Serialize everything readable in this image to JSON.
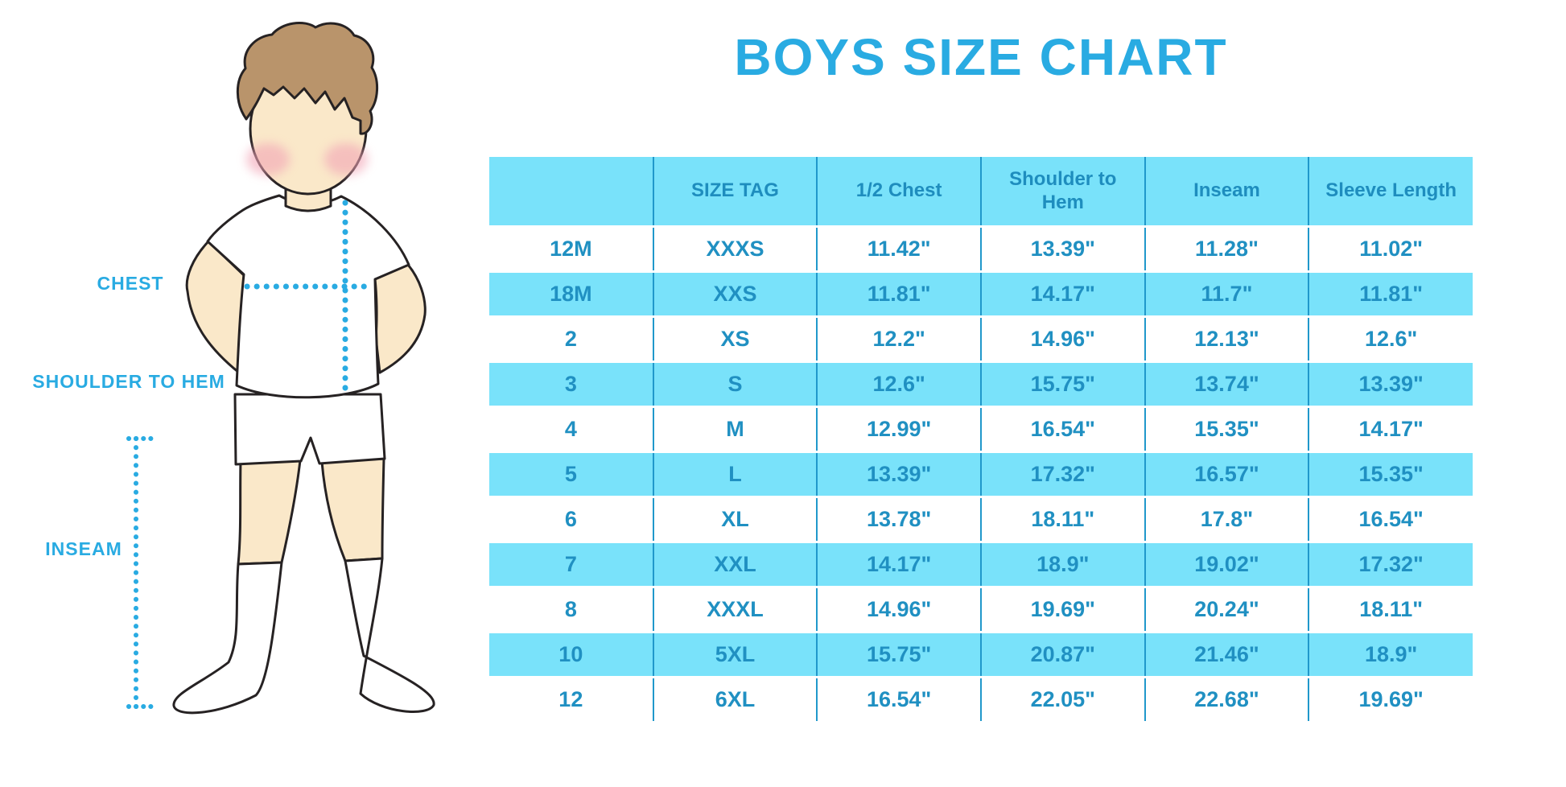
{
  "page": {
    "title": "BOYS SIZE CHART"
  },
  "figure": {
    "description": "cartoon boy in white tee, shorts and knee socks with dotted measurement guides",
    "labels": {
      "chest": "CHEST",
      "shoulder_to_hem": "SHOULDER TO HEM",
      "inseam": "INSEAM"
    }
  },
  "colors": {
    "accent_blue": "#29ABE2",
    "table_band_blue": "#79E2FA",
    "table_text_blue": "#2090C2",
    "grid_line_blue": "#2098CB",
    "skin": "#FAE8C9",
    "hair": "#B9946B",
    "blush": "#F2A4B6",
    "outline": "#262223"
  },
  "chart_data": {
    "type": "table",
    "title": "BOYS SIZE CHART",
    "columns": [
      "",
      "SIZE TAG",
      "1/2 Chest",
      "Shoulder to Hem",
      "Inseam",
      "Sleeve Length"
    ],
    "rows": [
      [
        "12M",
        "XXXS",
        "11.42\"",
        "13.39\"",
        "11.28\"",
        "11.02\""
      ],
      [
        "18M",
        "XXS",
        "11.81\"",
        "14.17\"",
        "11.7\"",
        "11.81\""
      ],
      [
        "2",
        "XS",
        "12.2\"",
        "14.96\"",
        "12.13\"",
        "12.6\""
      ],
      [
        "3",
        "S",
        "12.6\"",
        "15.75\"",
        "13.74\"",
        "13.39\""
      ],
      [
        "4",
        "M",
        "12.99\"",
        "16.54\"",
        "15.35\"",
        "14.17\""
      ],
      [
        "5",
        "L",
        "13.39\"",
        "17.32\"",
        "16.57\"",
        "15.35\""
      ],
      [
        "6",
        "XL",
        "13.78\"",
        "18.11\"",
        "17.8\"",
        "16.54\""
      ],
      [
        "7",
        "XXL",
        "14.17\"",
        "18.9\"",
        "19.02\"",
        "17.32\""
      ],
      [
        "8",
        "XXXL",
        "14.96\"",
        "19.69\"",
        "20.24\"",
        "18.11\""
      ],
      [
        "10",
        "5XL",
        "15.75\"",
        "20.87\"",
        "21.46\"",
        "18.9\""
      ],
      [
        "12",
        "6XL",
        "16.54\"",
        "22.05\"",
        "22.68\"",
        "19.69\""
      ]
    ],
    "layout": {
      "striped": true,
      "stripe_rows_blue": [
        "18M",
        "3",
        "5",
        "7",
        "10"
      ],
      "header_bg": "#79E2FA",
      "grid": "vertical-only",
      "legend": "none"
    }
  }
}
